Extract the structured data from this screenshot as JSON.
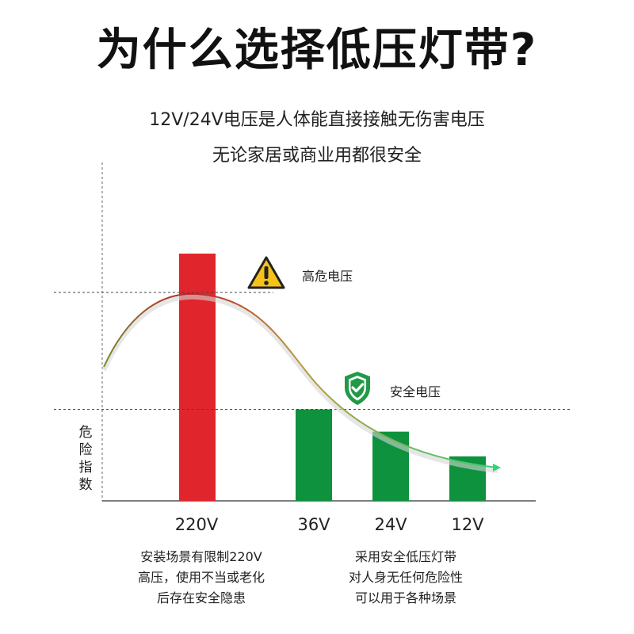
{
  "header": {
    "title": "为什么选择低压灯带?",
    "subtitle_line1": "12V/24V电压是人体能直接接触无伤害电压",
    "subtitle_line2": "无论家居或商业用都很安全"
  },
  "chart_data": {
    "type": "bar",
    "categories": [
      "220V",
      "36V",
      "24V",
      "12V"
    ],
    "values": [
      100,
      37,
      28,
      18
    ],
    "ylabel": "危险指数",
    "ylim": [
      0,
      100
    ],
    "grid": false,
    "colors": {
      "220V": "#e0262c",
      "36V": "#0e923d",
      "24V": "#0e923d",
      "12V": "#0e923d",
      "curve_start": "#7a8a2a",
      "curve_peak": "#c0202a",
      "curve_end": "#35d17a"
    },
    "annotations": {
      "high": "高危电压",
      "safe": "安全电压"
    }
  },
  "notes": {
    "left": [
      "安装场景有限制220V",
      "高压，使用不当或老化",
      "后存在安全隐患"
    ],
    "right": [
      "采用安全低压灯带",
      "对人身无任何危险性",
      "可以用于各种场景"
    ]
  },
  "icons": {
    "warning": "warning-triangle-icon",
    "shield": "shield-check-icon"
  }
}
